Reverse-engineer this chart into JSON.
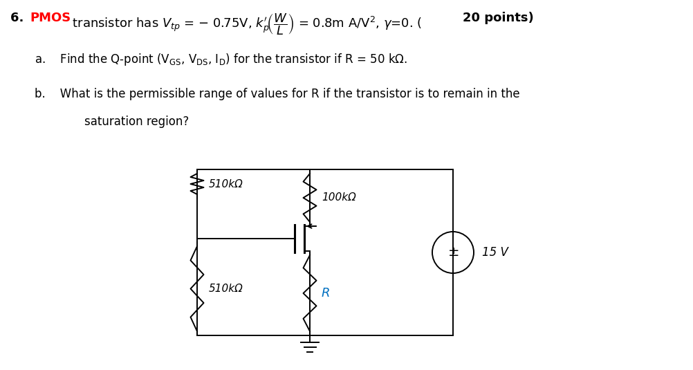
{
  "title_color": "#FF0000",
  "R1_top": "510kΩ",
  "R2_top": "100kΩ",
  "R1_bot": "510kΩ",
  "R_label": "R",
  "R_label_color": "#0070C0",
  "V_label": "15 V",
  "background": "#ffffff",
  "text_color": "#000000",
  "font_size_title": 13,
  "font_size_body": 12,
  "font_size_circuit": 11
}
